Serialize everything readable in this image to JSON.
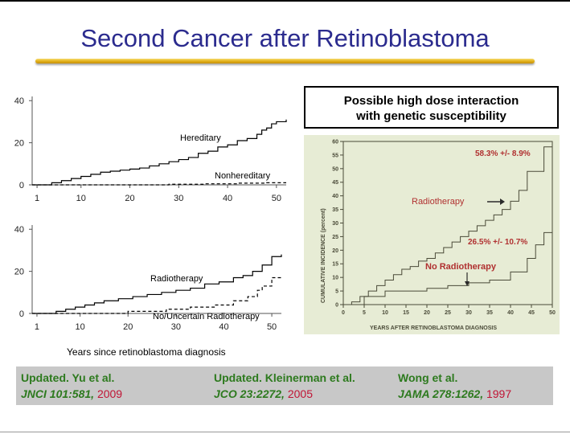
{
  "slide": {
    "title": "Second Cancer after Retinoblastoma",
    "callout_line1": "Possible high dose interaction",
    "callout_line2": "with genetic susceptibility"
  },
  "references": [
    {
      "line1": "Updated. Yu et al.",
      "journal": "JNCI 101:581,",
      "year": "2009"
    },
    {
      "line1": "Updated. Kleinerman et al.",
      "journal": "JCO 23:2272,",
      "year": "2005"
    },
    {
      "line1": "Wong et al.",
      "journal": "JAMA 278:1262,",
      "year": "1997"
    }
  ],
  "chart_data": [
    {
      "type": "line",
      "xlim": [
        0,
        52
      ],
      "ylim": [
        0,
        42
      ],
      "xticks": [
        1,
        10,
        20,
        30,
        40,
        50
      ],
      "yticks": [
        0,
        20,
        40
      ],
      "xlabel": "",
      "ylabel": "",
      "series": [
        {
          "name": "Hereditary",
          "style": "solid",
          "color": "#000000",
          "x": [
            0,
            3,
            4,
            6,
            8,
            10,
            12,
            14,
            16,
            18,
            20,
            22,
            24,
            26,
            28,
            30,
            32,
            34,
            36,
            38,
            40,
            42,
            44,
            46,
            47,
            48,
            49,
            50,
            52
          ],
          "y": [
            0,
            0,
            1,
            2,
            3,
            4,
            5,
            6,
            6.5,
            7,
            7.5,
            8,
            9,
            10,
            11,
            12,
            13,
            15,
            16,
            18,
            19,
            21,
            22,
            24,
            26,
            27,
            29,
            30,
            31
          ]
        },
        {
          "name": "Nonhereditary",
          "style": "dashed",
          "color": "#000000",
          "x": [
            0,
            20,
            28,
            35,
            42,
            48,
            52
          ],
          "y": [
            0,
            0,
            0.3,
            0.5,
            0.8,
            1,
            1
          ]
        }
      ]
    },
    {
      "type": "line",
      "xlim": [
        0,
        52
      ],
      "ylim": [
        0,
        42
      ],
      "xticks": [
        1,
        10,
        20,
        30,
        40,
        50
      ],
      "yticks": [
        0,
        20,
        40
      ],
      "xlabel": "Years since retinoblastoma diagnosis",
      "ylabel": "",
      "series": [
        {
          "name": "Radiotherapy",
          "style": "solid",
          "color": "#000000",
          "x": [
            0,
            3,
            5,
            7,
            9,
            11,
            13,
            15,
            18,
            21,
            24,
            27,
            30,
            33,
            36,
            39,
            42,
            44,
            46,
            48,
            50,
            52
          ],
          "y": [
            0,
            0,
            1,
            2,
            3,
            4,
            5,
            6,
            7,
            8,
            9,
            10,
            11,
            12,
            14,
            15,
            17,
            18,
            20,
            23,
            27,
            28
          ]
        },
        {
          "name": "No/Uncertain Radiotherapy",
          "style": "dashed",
          "color": "#000000",
          "x": [
            0,
            10,
            20,
            28,
            33,
            38,
            42,
            45,
            47,
            48,
            50,
            52
          ],
          "y": [
            0,
            0,
            1,
            2,
            3,
            4,
            6,
            8,
            11,
            13,
            17,
            17
          ]
        }
      ]
    },
    {
      "type": "line",
      "xlim": [
        0,
        50
      ],
      "ylim": [
        0,
        60
      ],
      "xticks": [
        0,
        5,
        10,
        15,
        20,
        25,
        30,
        35,
        40,
        45,
        50
      ],
      "yticks": [
        0,
        5,
        10,
        15,
        20,
        25,
        30,
        35,
        40,
        45,
        50,
        55,
        60
      ],
      "xlabel": "YEARS AFTER RETINOBLASTOMA DIAGNOSIS",
      "ylabel": "CUMULATIVE INCIDENCE (percent)",
      "series": [
        {
          "name": "Radiotherapy",
          "style": "solid",
          "color": "#4a4a38",
          "x": [
            0,
            2,
            4,
            6,
            8,
            10,
            12,
            14,
            16,
            18,
            20,
            22,
            24,
            26,
            28,
            30,
            32,
            34,
            36,
            38,
            40,
            42,
            44,
            46,
            48,
            50
          ],
          "y": [
            0,
            1,
            3,
            5,
            7,
            9,
            11,
            13,
            14,
            16,
            17,
            19,
            21,
            23,
            25,
            27,
            29,
            31,
            33,
            35,
            38,
            42,
            49,
            49,
            58,
            58
          ]
        },
        {
          "name": "No Radiotherapy",
          "style": "solid",
          "color": "#4a4a38",
          "x": [
            0,
            3,
            5,
            10,
            15,
            20,
            25,
            30,
            35,
            40,
            44,
            46,
            48,
            50
          ],
          "y": [
            0,
            0,
            3,
            5,
            5,
            6,
            7,
            8,
            9,
            12,
            17,
            22,
            26.5,
            26.5
          ]
        }
      ],
      "annotations": [
        "58.3% +/- 8.9%",
        "Radiotherapy",
        "26.5% +/- 10.7%",
        "No Radiotherapy"
      ]
    }
  ]
}
